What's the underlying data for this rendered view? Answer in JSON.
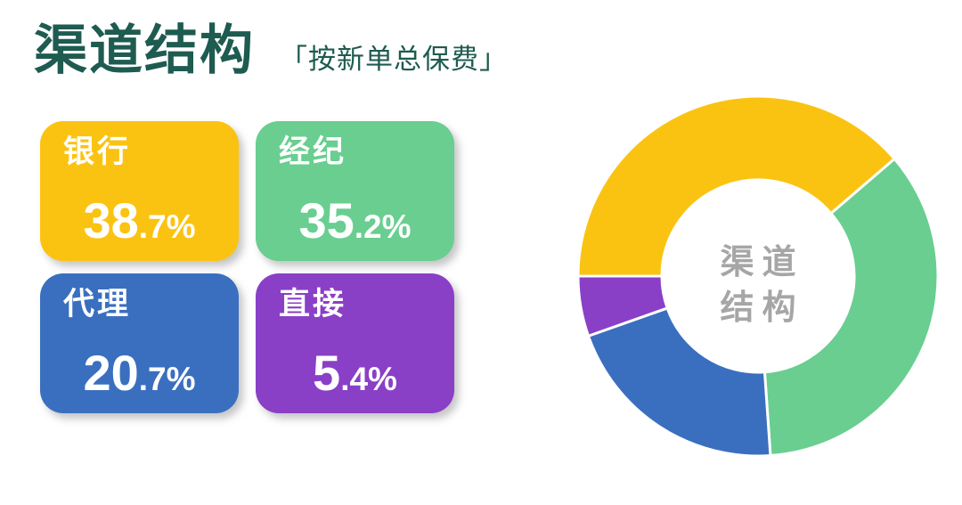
{
  "header": {
    "title": "渠道结构",
    "subtitle": "「按新单总保费」",
    "title_color": "#1E5B50"
  },
  "cards": [
    {
      "label": "银行",
      "value_int": "38",
      "value_frac": ".7%",
      "color": "#FBC311"
    },
    {
      "label": "经纪",
      "value_int": "35",
      "value_frac": ".2%",
      "color": "#69CE90"
    },
    {
      "label": "代理",
      "value_int": "20",
      "value_frac": ".7%",
      "color": "#3A6FBF"
    },
    {
      "label": "直接",
      "value_int": "5",
      "value_frac": ".4%",
      "color": "#8A3FC7"
    }
  ],
  "chart_data": {
    "type": "pie",
    "title": "渠道结构（按新单总保费）",
    "categories": [
      "银行",
      "经纪",
      "代理",
      "直接"
    ],
    "values": [
      38.7,
      35.2,
      20.7,
      5.4
    ],
    "unit": "%",
    "colors": [
      "#FBC311",
      "#69CE90",
      "#3A6FBF",
      "#8A3FC7"
    ],
    "donut": true,
    "inner_radius_ratio": 0.535,
    "start_angle_deg": 270,
    "direction": "clockwise",
    "gap_color": "#FFFFFF",
    "center_label_lines": [
      "渠道",
      "结构"
    ],
    "center_label_color": "#A6A6A6",
    "legend_position": "none",
    "grid": false
  }
}
